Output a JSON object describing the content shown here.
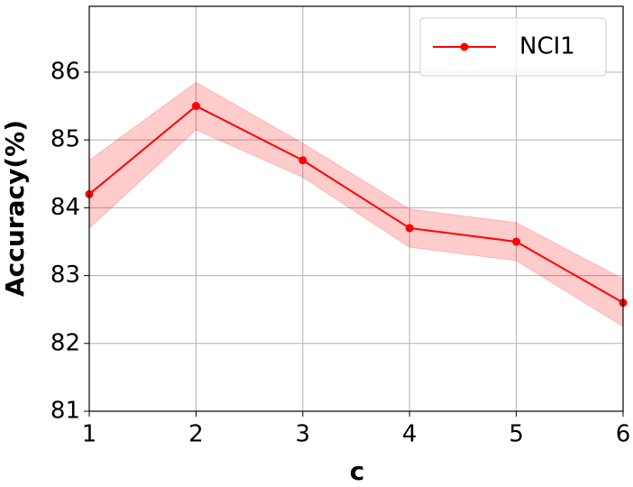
{
  "chart_data": {
    "type": "line",
    "x": [
      1,
      2,
      3,
      4,
      5,
      6
    ],
    "xlabel": "c",
    "ylabel": "Accuracy(%)",
    "series": [
      {
        "name": "NCI1",
        "color": "#ff0000",
        "values": [
          84.2,
          85.5,
          84.7,
          83.7,
          83.5,
          82.6
        ],
        "error": [
          0.5,
          0.35,
          0.25,
          0.28,
          0.28,
          0.35
        ]
      }
    ],
    "xlim": [
      1,
      6
    ],
    "ylim": [
      81,
      86.97
    ],
    "xticks": [
      1,
      2,
      3,
      4,
      5,
      6
    ],
    "yticks": [
      81,
      82,
      83,
      84,
      85,
      86
    ],
    "grid": true,
    "legend": "upper right"
  }
}
